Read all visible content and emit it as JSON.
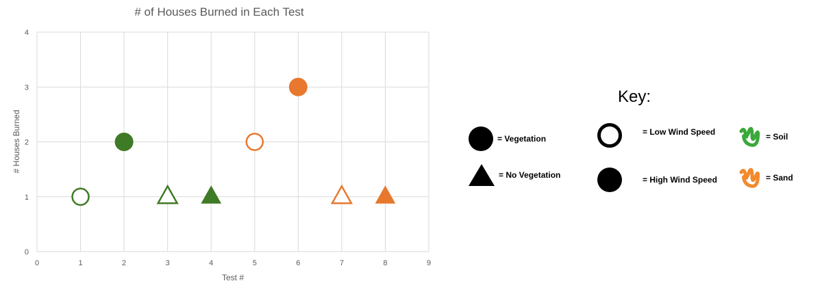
{
  "chart_data": {
    "type": "scatter",
    "title": "# of Houses Burned in Each Test",
    "xlabel": "Test #",
    "ylabel": "# Houses Burned",
    "xlim": [
      0,
      9
    ],
    "ylim": [
      0,
      4
    ],
    "xticks": [
      "0",
      "1",
      "2",
      "3",
      "4",
      "5",
      "6",
      "7",
      "8",
      "9"
    ],
    "yticks": [
      "0",
      "1",
      "2",
      "3",
      "4"
    ],
    "grid": true,
    "points": [
      {
        "x": 1,
        "y": 1,
        "shape": "circle",
        "fill": "open",
        "color": "#3f7a26"
      },
      {
        "x": 2,
        "y": 2,
        "shape": "circle",
        "fill": "filled",
        "color": "#3f7a26"
      },
      {
        "x": 3,
        "y": 1,
        "shape": "triangle",
        "fill": "open",
        "color": "#3f7a26"
      },
      {
        "x": 4,
        "y": 1,
        "shape": "triangle",
        "fill": "filled",
        "color": "#3f7a26"
      },
      {
        "x": 5,
        "y": 2,
        "shape": "circle",
        "fill": "open",
        "color": "#e8782e"
      },
      {
        "x": 6,
        "y": 3,
        "shape": "circle",
        "fill": "filled",
        "color": "#e8782e"
      },
      {
        "x": 7,
        "y": 1,
        "shape": "triangle",
        "fill": "open",
        "color": "#e8782e"
      },
      {
        "x": 8,
        "y": 1,
        "shape": "triangle",
        "fill": "filled",
        "color": "#e8782e"
      }
    ]
  },
  "key": {
    "title": "Key:",
    "vegetation": "= Vegetation",
    "no_vegetation": "= No Vegetation",
    "low_wind": "= Low Wind Speed",
    "high_wind": "= High Wind Speed",
    "soil": "= Soil",
    "sand": "= Sand",
    "soil_color": "#3aa83a",
    "sand_color": "#f28a2e"
  }
}
